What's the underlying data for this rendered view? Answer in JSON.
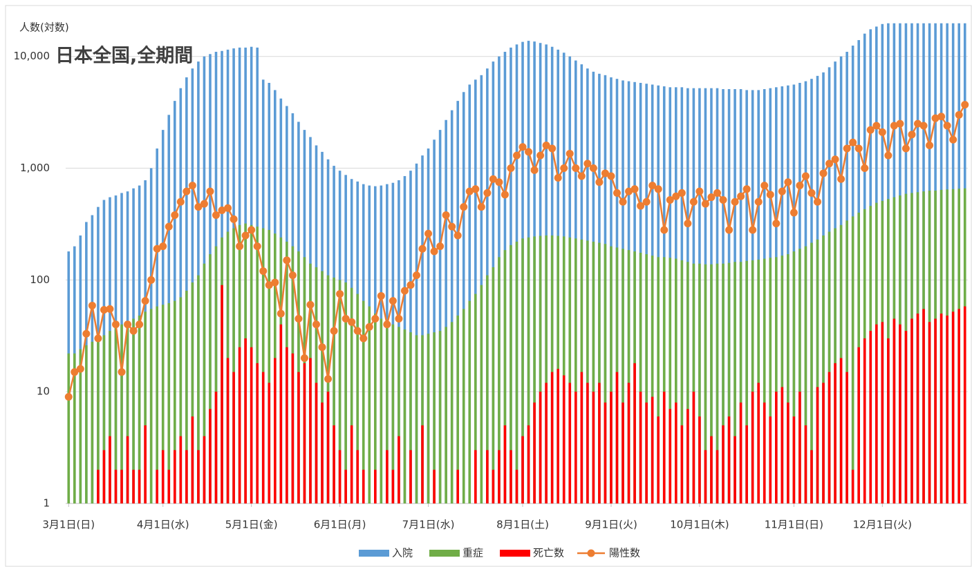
{
  "chart_data": {
    "type": "bar",
    "title": "日本全国,全期間",
    "y_label": "人数(対数)",
    "yscale": "log",
    "ylim": [
      1,
      20000
    ],
    "yticks": [
      1,
      10,
      100,
      {
        "value": 1000,
        "label": "1,000"
      },
      {
        "value": 10000,
        "label": "10,000"
      }
    ],
    "grid": true,
    "legend": "bottom",
    "categories": [
      "3月1日(日)",
      null,
      null,
      null,
      null,
      null,
      null,
      null,
      null,
      null,
      null,
      null,
      null,
      null,
      null,
      null,
      "4月1日(水)",
      null,
      null,
      null,
      null,
      null,
      null,
      null,
      null,
      null,
      null,
      null,
      null,
      null,
      null,
      "5月1日(金)",
      null,
      null,
      null,
      null,
      null,
      null,
      null,
      null,
      null,
      null,
      null,
      null,
      null,
      null,
      "6月1日(月)",
      null,
      null,
      null,
      null,
      null,
      null,
      null,
      null,
      null,
      null,
      null,
      null,
      null,
      null,
      "7月1日(水)",
      null,
      null,
      null,
      null,
      null,
      null,
      null,
      null,
      null,
      null,
      null,
      null,
      null,
      null,
      null,
      "8月1日(土)",
      null,
      null,
      null,
      null,
      null,
      null,
      null,
      null,
      null,
      null,
      null,
      null,
      null,
      null,
      "9月1日(火)",
      null,
      null,
      null,
      null,
      null,
      null,
      null,
      null,
      null,
      null,
      null,
      null,
      null,
      null,
      "10月1日(木)",
      null,
      null,
      null,
      null,
      null,
      null,
      null,
      null,
      null,
      null,
      null,
      null,
      null,
      null,
      null,
      "11月1日(日)",
      null,
      null,
      null,
      null,
      null,
      null,
      null,
      null,
      null,
      null,
      null,
      null,
      null,
      null,
      "12月1日(火)",
      null,
      null,
      null,
      null,
      null,
      null,
      null,
      null,
      null,
      null,
      null,
      null,
      null,
      null
    ],
    "series": [
      {
        "name": "入院",
        "type": "bar",
        "color": "#5b9bd5",
        "values": [
          180,
          200,
          250,
          330,
          380,
          450,
          520,
          550,
          570,
          600,
          620,
          660,
          700,
          780,
          1000,
          1500,
          2200,
          3000,
          4000,
          5200,
          6500,
          7800,
          9000,
          10000,
          10500,
          11000,
          11200,
          11500,
          11800,
          12000,
          12000,
          12200,
          12000,
          6200,
          5800,
          5000,
          4200,
          3600,
          3100,
          2600,
          2200,
          1900,
          1600,
          1400,
          1200,
          1050,
          950,
          870,
          800,
          760,
          720,
          700,
          690,
          700,
          720,
          740,
          780,
          850,
          950,
          1100,
          1300,
          1500,
          1800,
          2200,
          2700,
          3300,
          4000,
          4800,
          5600,
          6200,
          6800,
          7800,
          9000,
          10000,
          11000,
          12000,
          12800,
          13500,
          13800,
          13600,
          13200,
          12800,
          12200,
          11500,
          10800,
          10000,
          9200,
          8500,
          7800,
          7300,
          7000,
          6800,
          6500,
          6300,
          6100,
          6000,
          5900,
          5800,
          5700,
          5600,
          5500,
          5400,
          5300,
          5300,
          5300,
          5200,
          5200,
          5200,
          5200,
          5200,
          5200,
          5100,
          5100,
          5100,
          5100,
          5000,
          5000,
          5000,
          5100,
          5200,
          5300,
          5400,
          5500,
          5600,
          5800,
          6000,
          6300,
          6700,
          7200,
          8000,
          9000,
          10000,
          11000,
          12500,
          14000,
          16000,
          17500,
          18500,
          19500,
          19800,
          19800,
          19800,
          19800,
          19800,
          19800,
          19800,
          19800,
          19800,
          19800,
          19800,
          19800,
          19800,
          19800
        ]
      },
      {
        "name": "重症",
        "type": "bar",
        "color": "#70ad47",
        "values": [
          22,
          22,
          24,
          26,
          28,
          30,
          32,
          35,
          38,
          40,
          42,
          45,
          48,
          52,
          55,
          58,
          60,
          62,
          65,
          70,
          80,
          95,
          110,
          140,
          170,
          200,
          240,
          270,
          290,
          310,
          320,
          310,
          300,
          290,
          280,
          260,
          240,
          220,
          200,
          180,
          160,
          140,
          130,
          120,
          110,
          105,
          100,
          95,
          85,
          75,
          65,
          58,
          50,
          45,
          42,
          40,
          38,
          36,
          34,
          32,
          32,
          33,
          34,
          35,
          38,
          42,
          48,
          55,
          65,
          75,
          90,
          110,
          130,
          160,
          185,
          205,
          220,
          235,
          240,
          245,
          248,
          250,
          250,
          248,
          245,
          240,
          235,
          230,
          225,
          220,
          215,
          210,
          200,
          195,
          190,
          185,
          180,
          175,
          170,
          165,
          160,
          160,
          158,
          155,
          150,
          145,
          140,
          140,
          138,
          138,
          140,
          140,
          142,
          145,
          145,
          148,
          150,
          152,
          155,
          158,
          160,
          165,
          170,
          180,
          190,
          200,
          215,
          230,
          250,
          270,
          290,
          310,
          340,
          370,
          400,
          430,
          460,
          490,
          510,
          530,
          550,
          570,
          590,
          600,
          610,
          620,
          630,
          630,
          640,
          645,
          650,
          655,
          660
        ]
      },
      {
        "name": "死亡数",
        "type": "bar",
        "color": "#ff0000",
        "values": [
          0,
          0,
          0,
          0,
          0,
          2,
          3,
          4,
          2,
          2,
          4,
          2,
          2,
          5,
          0,
          2,
          3,
          2,
          3,
          4,
          3,
          6,
          3,
          4,
          7,
          10,
          90,
          20,
          15,
          25,
          30,
          25,
          18,
          15,
          12,
          20,
          40,
          25,
          22,
          15,
          18,
          20,
          12,
          8,
          10,
          5,
          3,
          2,
          5,
          3,
          2,
          0,
          2,
          0,
          3,
          2,
          4,
          0,
          3,
          0,
          5,
          0,
          2,
          0,
          0,
          0,
          2,
          0,
          0,
          3,
          0,
          3,
          2,
          3,
          5,
          3,
          2,
          4,
          5,
          8,
          10,
          12,
          15,
          16,
          14,
          12,
          10,
          15,
          12,
          10,
          12,
          8,
          10,
          15,
          8,
          12,
          18,
          10,
          8,
          9,
          6,
          10,
          7,
          8,
          5,
          7,
          10,
          6,
          3,
          4,
          3,
          5,
          6,
          4,
          8,
          5,
          10,
          12,
          8,
          6,
          10,
          11,
          8,
          6,
          10,
          5,
          3,
          11,
          12,
          15,
          18,
          20,
          15,
          2,
          25,
          30,
          35,
          40,
          42,
          30,
          45,
          40,
          35,
          45,
          50,
          55,
          42,
          45,
          50,
          48,
          52,
          55,
          58
        ]
      },
      {
        "name": "陽性数",
        "type": "line",
        "color": "#ed7d31",
        "values": [
          9,
          15,
          16,
          33,
          59,
          30,
          54,
          55,
          40,
          15,
          40,
          35,
          40,
          65,
          100,
          190,
          200,
          300,
          380,
          500,
          620,
          700,
          450,
          480,
          620,
          380,
          420,
          440,
          350,
          200,
          250,
          280,
          200,
          120,
          90,
          95,
          50,
          150,
          110,
          45,
          20,
          60,
          40,
          25,
          13,
          35,
          75,
          45,
          42,
          35,
          30,
          38,
          45,
          72,
          40,
          65,
          45,
          80,
          90,
          110,
          190,
          260,
          180,
          200,
          380,
          300,
          250,
          450,
          620,
          650,
          450,
          600,
          800,
          750,
          580,
          1000,
          1300,
          1550,
          1400,
          960,
          1300,
          1600,
          1500,
          820,
          1000,
          1350,
          1000,
          850,
          1100,
          1000,
          750,
          900,
          850,
          600,
          500,
          620,
          650,
          460,
          500,
          700,
          650,
          280,
          520,
          560,
          600,
          320,
          500,
          620,
          480,
          550,
          600,
          520,
          280,
          500,
          560,
          650,
          280,
          500,
          700,
          580,
          320,
          620,
          750,
          400,
          700,
          850,
          600,
          500,
          900,
          1100,
          1200,
          800,
          1500,
          1700,
          1500,
          1000,
          2200,
          2400,
          2100,
          1300,
          2400,
          2500,
          1500,
          2000,
          2500,
          2400,
          1600,
          2800,
          2900,
          2400,
          1800,
          3000,
          3700
        ]
      }
    ]
  }
}
